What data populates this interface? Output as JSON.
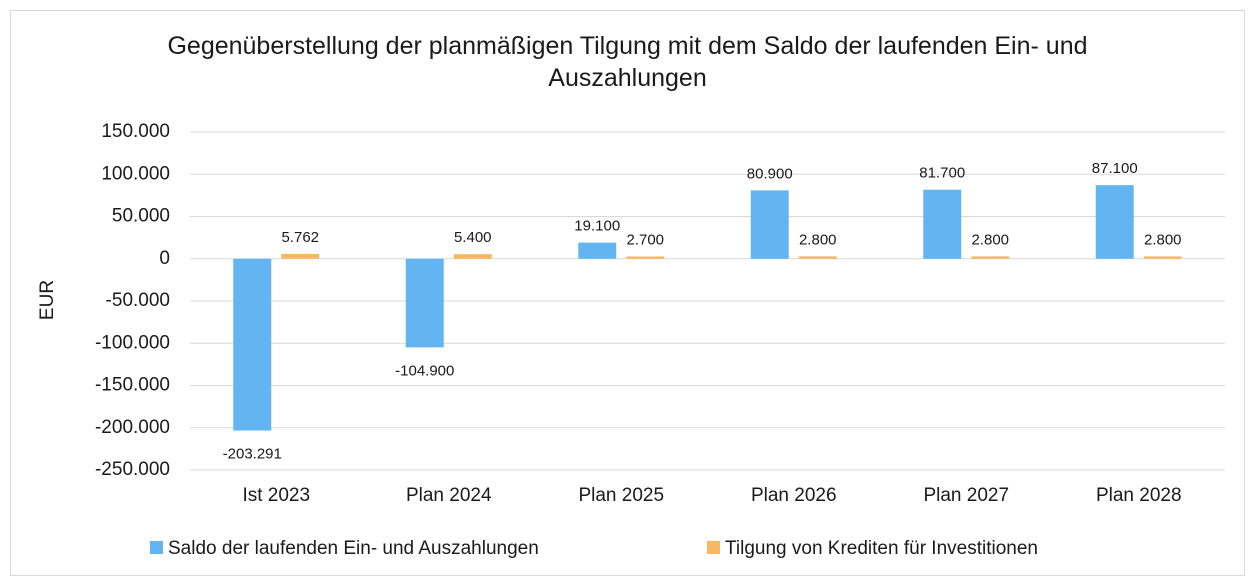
{
  "chart_data": {
    "type": "bar",
    "title": "Gegenüberstellung der planmäßigen Tilgung mit dem Saldo der laufenden Ein- und Auszahlungen",
    "y_label": "EUR",
    "categories": [
      "Ist 2023",
      "Plan 2024",
      "Plan 2025",
      "Plan 2026",
      "Plan 2027",
      "Plan 2028"
    ],
    "series": [
      {
        "name": "Saldo der laufenden Ein- und Auszahlungen",
        "color": "#63b5f2",
        "values": [
          -203291,
          -104900,
          19100,
          80900,
          81700,
          87100
        ],
        "value_labels": [
          "-203.291",
          "-104.900",
          "19.100",
          "80.900",
          "81.700",
          "87.100"
        ]
      },
      {
        "name": "Tilgung von Krediten für Investitionen",
        "color": "#f7b861",
        "values": [
          5762,
          5400,
          2700,
          2800,
          2800,
          2800
        ],
        "value_labels": [
          "5.762",
          "5.400",
          "2.700",
          "2.800",
          "2.800",
          "2.800"
        ]
      }
    ],
    "ylim": [
      -250000,
      150000
    ],
    "yticks": [
      {
        "value": -250000,
        "label": "-250.000"
      },
      {
        "value": -200000,
        "label": "-200.000"
      },
      {
        "value": -150000,
        "label": "-150.000"
      },
      {
        "value": -100000,
        "label": "-100.000"
      },
      {
        "value": -50000,
        "label": "-50.000"
      },
      0,
      {
        "value": 50000,
        "label": "50.000"
      },
      {
        "value": 100000,
        "label": "100.000"
      },
      {
        "value": 150000,
        "label": "150.000"
      }
    ],
    "grid": true,
    "legend": "bottom"
  }
}
